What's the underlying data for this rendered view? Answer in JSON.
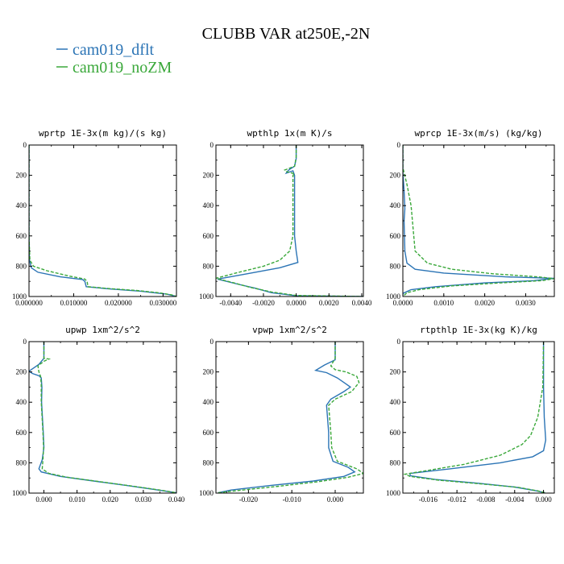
{
  "title": "CLUBB VAR at250E,-2N",
  "legend": [
    {
      "name": "cam019_dflt",
      "color": "#2b74b5"
    },
    {
      "name": "cam019_noZM",
      "color": "#3aa83a"
    }
  ],
  "chart_data": [
    {
      "type": "line",
      "title": "wprtp  1E-3x(m kg)/(s kg)",
      "xlim": [
        0,
        0.033
      ],
      "ylim": [
        1000,
        0
      ],
      "xticks": [
        "0.000000",
        "0.010000",
        "0.020000",
        "0.030000"
      ],
      "xtick_values": [
        0,
        0.01,
        0.02,
        0.03
      ],
      "yticks": [
        "0",
        "200",
        "400",
        "600",
        "800",
        "1000"
      ],
      "ytick_values": [
        0,
        200,
        400,
        600,
        800,
        1000
      ],
      "series": [
        {
          "name": "cam019_dflt",
          "points": [
            [
              0,
              0
            ],
            [
              0,
              600
            ],
            [
              0.0001,
              760
            ],
            [
              0.0005,
              810
            ],
            [
              0.002,
              840
            ],
            [
              0.007,
              870
            ],
            [
              0.012,
              888
            ],
            [
              0.0125,
              900
            ],
            [
              0.0128,
              935
            ],
            [
              0.018,
              950
            ],
            [
              0.025,
              965
            ],
            [
              0.031,
              985
            ],
            [
              0.033,
              1000
            ]
          ]
        },
        {
          "name": "cam019_noZM",
          "points": [
            [
              0,
              0
            ],
            [
              0,
              600
            ],
            [
              0.0002,
              760
            ],
            [
              0.001,
              800
            ],
            [
              0.004,
              830
            ],
            [
              0.009,
              865
            ],
            [
              0.0125,
              885
            ],
            [
              0.013,
              900
            ],
            [
              0.0132,
              935
            ],
            [
              0.018,
              948
            ],
            [
              0.024,
              960
            ],
            [
              0.029,
              975
            ],
            [
              0.032,
              990
            ],
            [
              0.033,
              1000
            ]
          ]
        }
      ]
    },
    {
      "type": "line",
      "title": "wpthlp  1x(m K)/s",
      "xlim": [
        -0.0049,
        0.0041
      ],
      "ylim": [
        1000,
        0
      ],
      "xticks": [
        "-0.0040",
        "-0.0020",
        "0.0000",
        "0.0020",
        "0.0040"
      ],
      "xtick_values": [
        -0.004,
        -0.002,
        0,
        0.002,
        0.004
      ],
      "yticks": [
        "0",
        "200",
        "400",
        "600",
        "800",
        "1000"
      ],
      "ytick_values": [
        0,
        200,
        400,
        600,
        800,
        1000
      ],
      "series": [
        {
          "name": "cam019_dflt",
          "points": [
            [
              0,
              0
            ],
            [
              0,
              90
            ],
            [
              -0.0001,
              140
            ],
            [
              -0.0004,
              160
            ],
            [
              -0.0005,
              170
            ],
            [
              -0.0006,
              185
            ],
            [
              -0.0002,
              170
            ],
            [
              -0.0001,
              200
            ],
            [
              -0.0001,
              400
            ],
            [
              -0.0001,
              600
            ],
            [
              0,
              700
            ],
            [
              0.0001,
              775
            ],
            [
              -0.001,
              810
            ],
            [
              -0.003,
              850
            ],
            [
              -0.0048,
              885
            ],
            [
              -0.0035,
              920
            ],
            [
              -0.0025,
              945
            ],
            [
              -0.0015,
              975
            ],
            [
              0,
              995
            ],
            [
              0.0041,
              1000
            ]
          ]
        },
        {
          "name": "cam019_noZM",
          "points": [
            [
              0,
              0
            ],
            [
              0,
              80
            ],
            [
              -0.0001,
              140
            ],
            [
              -0.0007,
              165
            ],
            [
              -0.0006,
              175
            ],
            [
              -0.0001,
              190
            ],
            [
              -0.0002,
              200
            ],
            [
              -0.0002,
              400
            ],
            [
              -0.0002,
              600
            ],
            [
              -0.0004,
              700
            ],
            [
              -0.001,
              760
            ],
            [
              -0.002,
              800
            ],
            [
              -0.0035,
              840
            ],
            [
              -0.0049,
              880
            ],
            [
              -0.0038,
              910
            ],
            [
              -0.0028,
              940
            ],
            [
              -0.0015,
              970
            ],
            [
              0,
              993
            ],
            [
              0.0041,
              1000
            ]
          ]
        }
      ]
    },
    {
      "type": "line",
      "title": "wprcp  1E-3x(m/s) (kg/kg)",
      "xlim": [
        0,
        0.0037
      ],
      "ylim": [
        1000,
        0
      ],
      "xticks": [
        "0.0000",
        "0.0010",
        "0.0020",
        "0.0030"
      ],
      "xtick_values": [
        0,
        0.001,
        0.002,
        0.003
      ],
      "yticks": [
        "0",
        "200",
        "400",
        "600",
        "800",
        "1000"
      ],
      "ytick_values": [
        0,
        200,
        400,
        600,
        800,
        1000
      ],
      "series": [
        {
          "name": "cam019_dflt",
          "points": [
            [
              0,
              0
            ],
            [
              0,
              180
            ],
            [
              3e-05,
              300
            ],
            [
              5e-05,
              420
            ],
            [
              3e-05,
              500
            ],
            [
              5e-05,
              700
            ],
            [
              0.0001,
              780
            ],
            [
              0.0003,
              820
            ],
            [
              0.001,
              845
            ],
            [
              0.0025,
              870
            ],
            [
              0.0037,
              880
            ],
            [
              0.0032,
              895
            ],
            [
              0.002,
              910
            ],
            [
              0.0008,
              935
            ],
            [
              0.0002,
              955
            ],
            [
              0,
              980
            ],
            [
              0,
              1000
            ]
          ]
        },
        {
          "name": "cam019_noZM",
          "points": [
            [
              0,
              0
            ],
            [
              0,
              150
            ],
            [
              0.0001,
              260
            ],
            [
              0.0002,
              400
            ],
            [
              0.00025,
              550
            ],
            [
              0.0003,
              700
            ],
            [
              0.0006,
              780
            ],
            [
              0.0012,
              820
            ],
            [
              0.0022,
              850
            ],
            [
              0.0033,
              870
            ],
            [
              0.0037,
              882
            ],
            [
              0.0034,
              895
            ],
            [
              0.0024,
              910
            ],
            [
              0.0012,
              930
            ],
            [
              0.0004,
              955
            ],
            [
              0.0001,
              975
            ],
            [
              0,
              1000
            ]
          ]
        }
      ]
    },
    {
      "type": "line",
      "title": "upwp  1xm^2/s^2",
      "xlim": [
        -0.0045,
        0.04
      ],
      "ylim": [
        1000,
        0
      ],
      "xticks": [
        "0.000",
        "0.010",
        "0.020",
        "0.030",
        "0.040"
      ],
      "xtick_values": [
        0,
        0.01,
        0.02,
        0.03,
        0.04
      ],
      "yticks": [
        "0",
        "200",
        "400",
        "600",
        "800",
        "1000"
      ],
      "ytick_values": [
        0,
        200,
        400,
        600,
        800,
        1000
      ],
      "series": [
        {
          "name": "cam019_dflt",
          "points": [
            [
              0,
              0
            ],
            [
              0,
              110
            ],
            [
              -0.0015,
              150
            ],
            [
              -0.0045,
              195
            ],
            [
              -0.0035,
              210
            ],
            [
              -0.0015,
              225
            ],
            [
              -0.0008,
              240
            ],
            [
              -0.0006,
              300
            ],
            [
              -0.0007,
              400
            ],
            [
              -0.0002,
              600
            ],
            [
              0,
              700
            ],
            [
              -0.0005,
              780
            ],
            [
              -0.0015,
              840
            ],
            [
              -0.0008,
              860
            ],
            [
              0.005,
              890
            ],
            [
              0.015,
              920
            ],
            [
              0.025,
              950
            ],
            [
              0.033,
              975
            ],
            [
              0.04,
              998
            ]
          ]
        },
        {
          "name": "cam019_noZM",
          "points": [
            [
              0,
              0
            ],
            [
              0,
              110
            ],
            [
              0.0015,
              115
            ],
            [
              0,
              130
            ],
            [
              -0.0018,
              160
            ],
            [
              -0.0015,
              200
            ],
            [
              -0.001,
              230
            ],
            [
              -0.0008,
              280
            ],
            [
              -0.0008,
              400
            ],
            [
              -0.0003,
              600
            ],
            [
              -0.0001,
              700
            ],
            [
              -0.0003,
              780
            ],
            [
              -0.0005,
              840
            ],
            [
              0.0015,
              870
            ],
            [
              0.007,
              895
            ],
            [
              0.017,
              925
            ],
            [
              0.027,
              955
            ],
            [
              0.035,
              980
            ],
            [
              0.04,
              998
            ]
          ]
        }
      ]
    },
    {
      "type": "line",
      "title": "vpwp  1xm^2/s^2",
      "xlim": [
        -0.0275,
        0.0065
      ],
      "ylim": [
        1000,
        0
      ],
      "xticks": [
        "-0.020",
        "-0.010",
        "0.000"
      ],
      "xtick_values": [
        -0.02,
        -0.01,
        0
      ],
      "yticks": [
        "0",
        "200",
        "400",
        "600",
        "800",
        "1000"
      ],
      "ytick_values": [
        0,
        200,
        400,
        600,
        800,
        1000
      ],
      "series": [
        {
          "name": "cam019_dflt",
          "points": [
            [
              0,
              0
            ],
            [
              0,
              120
            ],
            [
              -0.0025,
              155
            ],
            [
              -0.0045,
              190
            ],
            [
              -0.002,
              205
            ],
            [
              0.0005,
              240
            ],
            [
              0.0025,
              280
            ],
            [
              0.0035,
              300
            ],
            [
              0.002,
              330
            ],
            [
              -0.001,
              380
            ],
            [
              -0.002,
              420
            ],
            [
              -0.0015,
              600
            ],
            [
              -0.0015,
              700
            ],
            [
              -0.0005,
              790
            ],
            [
              0.003,
              830
            ],
            [
              0.0045,
              860
            ],
            [
              0.002,
              890
            ],
            [
              -0.005,
              920
            ],
            [
              -0.015,
              950
            ],
            [
              -0.024,
              980
            ],
            [
              -0.027,
              998
            ]
          ]
        },
        {
          "name": "cam019_noZM",
          "points": [
            [
              0,
              0
            ],
            [
              0,
              110
            ],
            [
              -0.001,
              160
            ],
            [
              0,
              185
            ],
            [
              0.0025,
              200
            ],
            [
              0.005,
              230
            ],
            [
              0.0055,
              270
            ],
            [
              0.0038,
              330
            ],
            [
              0,
              380
            ],
            [
              -0.0015,
              420
            ],
            [
              -0.001,
              600
            ],
            [
              -0.0008,
              700
            ],
            [
              0.0005,
              790
            ],
            [
              0.005,
              840
            ],
            [
              0.0065,
              870
            ],
            [
              0.003,
              895
            ],
            [
              -0.004,
              925
            ],
            [
              -0.013,
              955
            ],
            [
              -0.022,
              982
            ],
            [
              -0.027,
              998
            ]
          ]
        }
      ]
    },
    {
      "type": "line",
      "title": "rtpthlp  1E-3x(kg K)/kg",
      "xlim": [
        -0.0195,
        0.0015
      ],
      "ylim": [
        1000,
        0
      ],
      "xticks": [
        "-0.016",
        "-0.012",
        "-0.008",
        "-0.004",
        "0.000"
      ],
      "xtick_values": [
        -0.016,
        -0.012,
        -0.008,
        -0.004,
        0
      ],
      "yticks": [
        "0",
        "200",
        "400",
        "600",
        "800",
        "1000"
      ],
      "ytick_values": [
        0,
        200,
        400,
        600,
        800,
        1000
      ],
      "series": [
        {
          "name": "cam019_dflt",
          "points": [
            [
              0,
              0
            ],
            [
              0,
              300
            ],
            [
              0.0001,
              500
            ],
            [
              0.0003,
              650
            ],
            [
              0,
              720
            ],
            [
              -0.0015,
              760
            ],
            [
              -0.006,
              800
            ],
            [
              -0.013,
              840
            ],
            [
              -0.0185,
              870
            ],
            [
              -0.0185,
              885
            ],
            [
              -0.015,
              910
            ],
            [
              -0.009,
              935
            ],
            [
              -0.004,
              960
            ],
            [
              -0.001,
              985
            ],
            [
              0.0002,
              998
            ]
          ]
        },
        {
          "name": "cam019_noZM",
          "points": [
            [
              0,
              0
            ],
            [
              -0.0001,
              300
            ],
            [
              -0.0008,
              500
            ],
            [
              -0.0018,
              620
            ],
            [
              -0.003,
              680
            ],
            [
              -0.006,
              750
            ],
            [
              -0.011,
              810
            ],
            [
              -0.016,
              850
            ],
            [
              -0.0192,
              875
            ],
            [
              -0.0185,
              890
            ],
            [
              -0.0145,
              915
            ],
            [
              -0.0085,
              940
            ],
            [
              -0.0035,
              962
            ],
            [
              -0.0008,
              985
            ],
            [
              0.0002,
              998
            ]
          ]
        }
      ]
    }
  ]
}
